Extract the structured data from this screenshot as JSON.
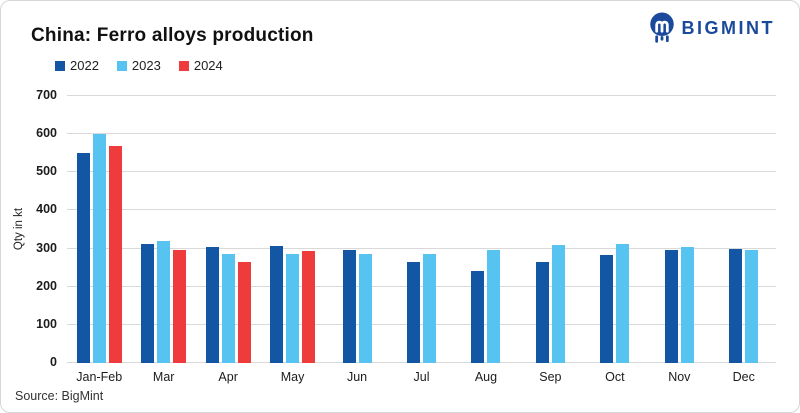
{
  "header": {
    "title": "China: Ferro alloys production",
    "logo_text": "BIGMINT"
  },
  "footer": {
    "source": "Source:  BigMint"
  },
  "colors": {
    "brand_navy": "#1b4a9c",
    "series_2022": "#1256a4",
    "series_2023": "#56c3f1",
    "series_2024": "#ee3b3c",
    "grid": "#d9d9d9"
  },
  "chart_data": {
    "type": "bar",
    "title": "China: Ferro alloys production",
    "xlabel": "",
    "ylabel": "Qty in kt",
    "ylim": [
      0,
      700
    ],
    "ytick_step": 100,
    "grid": true,
    "legend_position": "top-left",
    "categories": [
      "Jan-Feb",
      "Mar",
      "Apr",
      "May",
      "Jun",
      "Jul",
      "Aug",
      "Sep",
      "Oct",
      "Nov",
      "Dec"
    ],
    "series": [
      {
        "name": "2022",
        "color": "#1256a4",
        "values": [
          550,
          312,
          305,
          308,
          297,
          264,
          242,
          264,
          282,
          296,
          299
        ]
      },
      {
        "name": "2023",
        "color": "#56c3f1",
        "values": [
          600,
          320,
          285,
          287,
          287,
          286,
          296,
          310,
          312,
          304,
          296
        ]
      },
      {
        "name": "2024",
        "color": "#ee3b3c",
        "values": [
          568,
          296,
          266,
          294,
          null,
          null,
          null,
          null,
          null,
          null,
          null
        ]
      }
    ]
  }
}
